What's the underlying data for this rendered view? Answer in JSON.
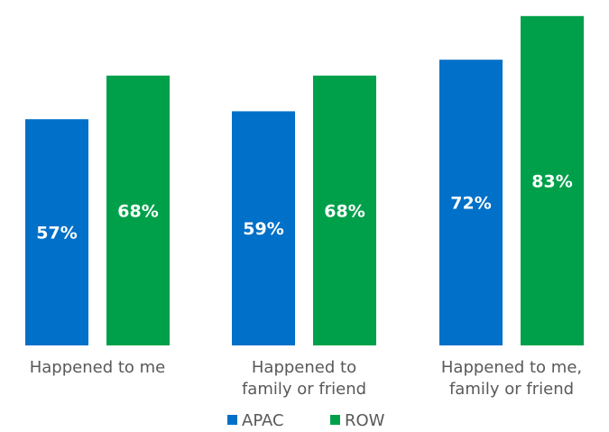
{
  "chart_data": {
    "type": "bar",
    "categories": [
      [
        "Happened to me"
      ],
      [
        "Happened to",
        "family or friend"
      ],
      [
        "Happened to me,",
        "family or friend"
      ]
    ],
    "series": [
      {
        "name": "APAC",
        "values": [
          57,
          59,
          72
        ],
        "labels": [
          "57%",
          "59%",
          "72%"
        ],
        "color": "#0070C8"
      },
      {
        "name": "ROW",
        "values": [
          68,
          68,
          83
        ],
        "labels": [
          "68%",
          "68%",
          "83%"
        ],
        "color": "#00A04A"
      }
    ],
    "grid": false,
    "legend_position": "bottom"
  }
}
